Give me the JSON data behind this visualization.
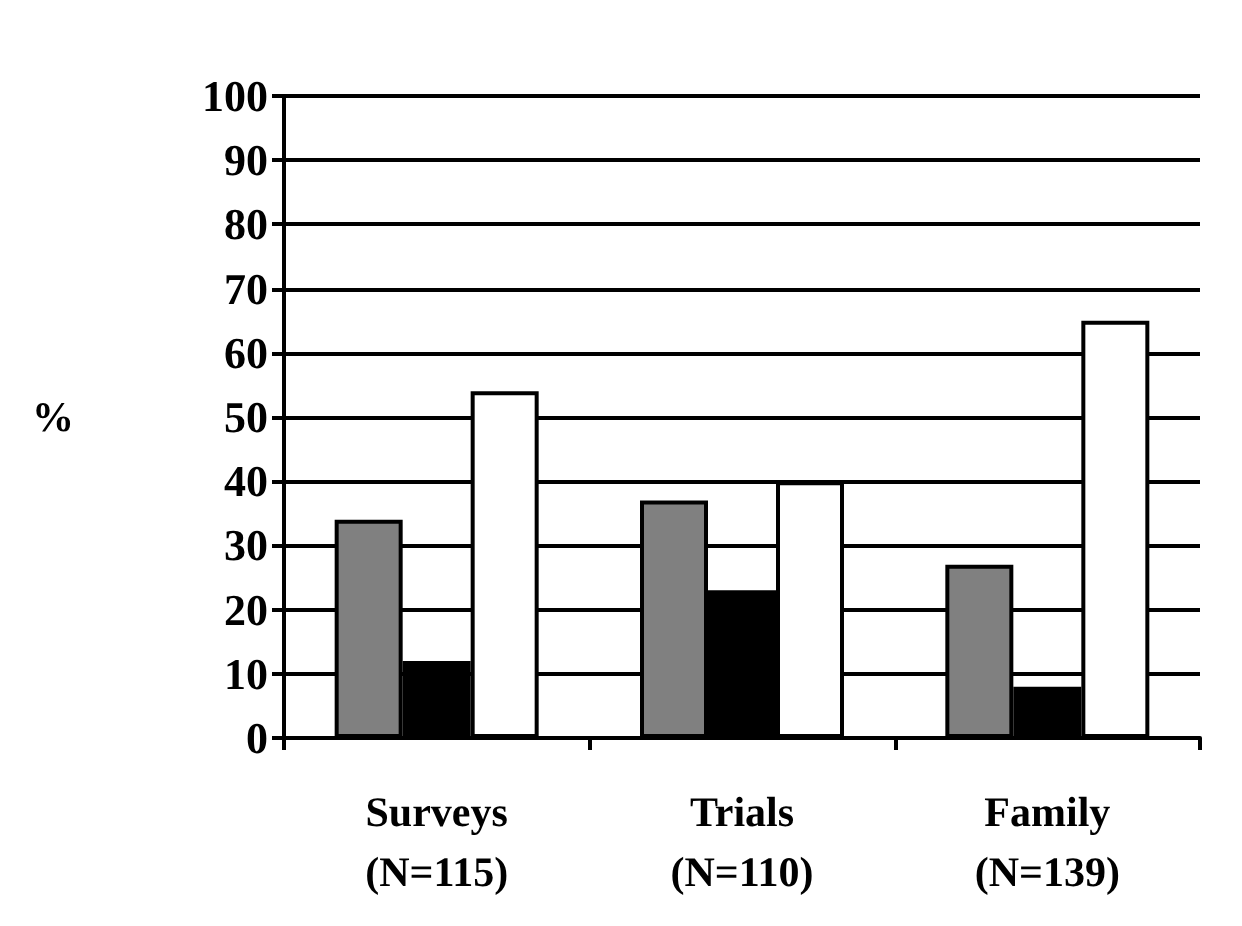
{
  "chart_data": {
    "type": "bar",
    "ylabel": "%",
    "categories": [
      "Surveys\n(N=115)",
      "Trials\n(N=110)",
      "Family\n(N=139)"
    ],
    "series": [
      {
        "color": "#808080",
        "values": [
          34,
          37,
          27
        ]
      },
      {
        "color": "#000000",
        "values": [
          12,
          23,
          8
        ]
      },
      {
        "color": "#ffffff",
        "values": [
          54,
          40,
          65
        ]
      }
    ],
    "ylim": [
      0,
      100
    ],
    "yticks": [
      0,
      10,
      20,
      30,
      40,
      50,
      60,
      70,
      80,
      90,
      100
    ],
    "grid": "y"
  }
}
